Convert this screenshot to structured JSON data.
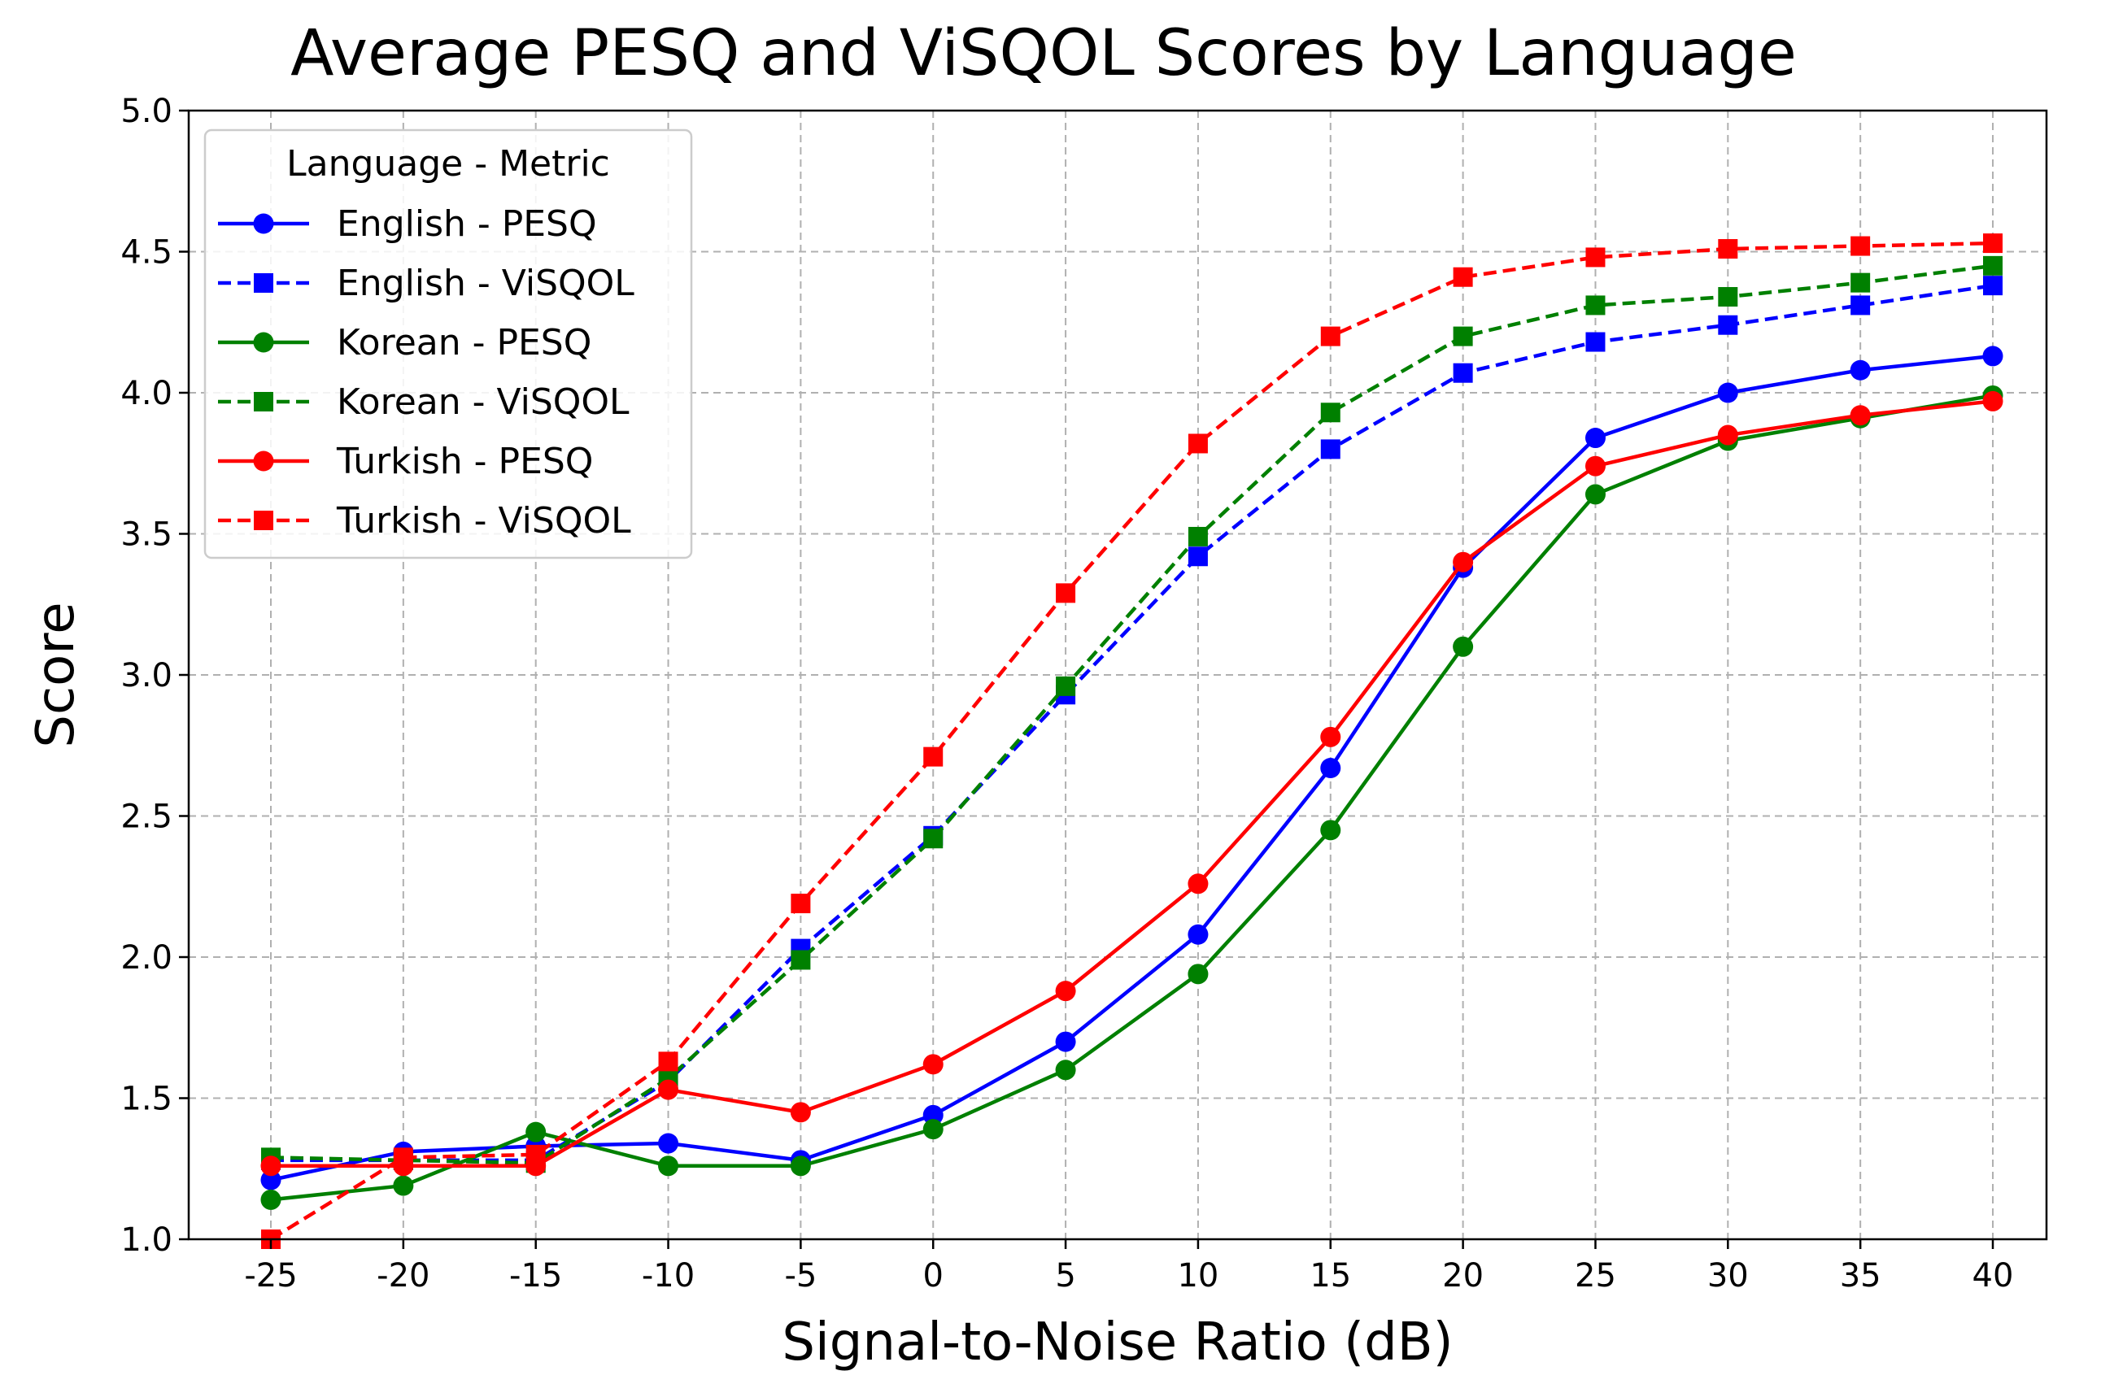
{
  "chart_data": {
    "type": "line",
    "title": "Average PESQ and ViSQOL Scores by Language",
    "xlabel": "Signal-to-Noise Ratio (dB)",
    "ylabel": "Score",
    "x": [
      -25,
      -20,
      -15,
      -10,
      -5,
      0,
      5,
      10,
      15,
      20,
      25,
      30,
      35,
      40
    ],
    "x_tick_labels": [
      "-25",
      "-20",
      "-15",
      "-10",
      "-5",
      "0",
      "5",
      "10",
      "15",
      "20",
      "25",
      "30",
      "35",
      "40"
    ],
    "ylim": [
      1.0,
      5.0
    ],
    "y_ticks": [
      1.0,
      1.5,
      2.0,
      2.5,
      3.0,
      3.5,
      4.0,
      4.5,
      5.0
    ],
    "y_tick_labels": [
      "1.0",
      "1.5",
      "2.0",
      "2.5",
      "3.0",
      "3.5",
      "4.0",
      "4.5",
      "5.0"
    ],
    "grid": true,
    "legend": {
      "title": "Language - Metric",
      "placement": "upper-left"
    },
    "series": [
      {
        "name": "English - PESQ",
        "color": "#0000ff",
        "line_style": "solid",
        "marker": "circle",
        "values": [
          1.21,
          1.31,
          1.33,
          1.34,
          1.28,
          1.44,
          1.7,
          2.08,
          2.67,
          3.38,
          3.84,
          4.0,
          4.08,
          4.13
        ]
      },
      {
        "name": "English - ViSQOL",
        "color": "#0000ff",
        "line_style": "dashed",
        "marker": "square",
        "values": [
          1.28,
          1.28,
          1.28,
          1.56,
          2.03,
          2.43,
          2.93,
          3.42,
          3.8,
          4.07,
          4.18,
          4.24,
          4.31,
          4.38
        ]
      },
      {
        "name": "Korean - PESQ",
        "color": "#008000",
        "line_style": "solid",
        "marker": "circle",
        "values": [
          1.14,
          1.19,
          1.38,
          1.26,
          1.26,
          1.39,
          1.6,
          1.94,
          2.45,
          3.1,
          3.64,
          3.83,
          3.91,
          3.99
        ]
      },
      {
        "name": "Korean - ViSQOL",
        "color": "#008000",
        "line_style": "dashed",
        "marker": "square",
        "values": [
          1.29,
          1.28,
          1.27,
          1.57,
          1.99,
          2.42,
          2.96,
          3.49,
          3.93,
          4.2,
          4.31,
          4.34,
          4.39,
          4.45
        ]
      },
      {
        "name": "Turkish - PESQ",
        "color": "#ff0000",
        "line_style": "solid",
        "marker": "circle",
        "values": [
          1.26,
          1.26,
          1.26,
          1.53,
          1.45,
          1.62,
          1.88,
          2.26,
          2.78,
          3.4,
          3.74,
          3.85,
          3.92,
          3.97
        ]
      },
      {
        "name": "Turkish - ViSQOL",
        "color": "#ff0000",
        "line_style": "dashed",
        "marker": "square",
        "values": [
          1.0,
          1.29,
          1.3,
          1.63,
          2.19,
          2.71,
          3.29,
          3.82,
          4.2,
          4.41,
          4.48,
          4.51,
          4.52,
          4.53
        ]
      }
    ]
  }
}
